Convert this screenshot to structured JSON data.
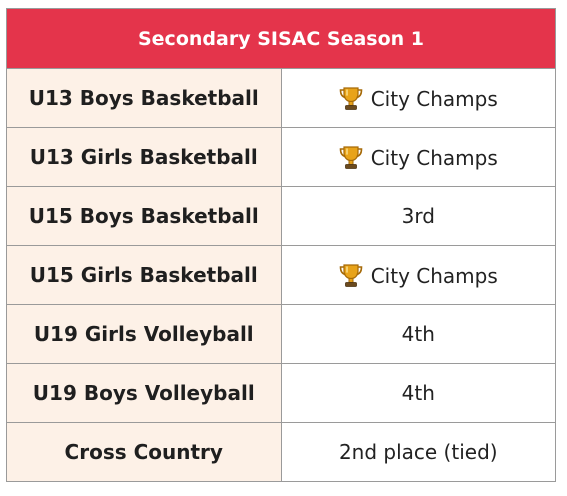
{
  "table": {
    "title": "Secondary SISAC Season 1",
    "colors": {
      "header_bg": "#e4344b",
      "sport_cell_bg": "#fdf1e7",
      "trophy": "#e8a31a"
    },
    "rows": [
      {
        "sport": "U13 Boys Basketball",
        "result": "City Champs",
        "icon": "trophy-icon"
      },
      {
        "sport": "U13 Girls Basketball",
        "result": "City Champs",
        "icon": "trophy-icon"
      },
      {
        "sport": "U15 Boys Basketball",
        "result": "3rd",
        "icon": ""
      },
      {
        "sport": "U15 Girls Basketball",
        "result": "City Champs",
        "icon": "trophy-icon"
      },
      {
        "sport": "U19 Girls Volleyball",
        "result": "4th",
        "icon": ""
      },
      {
        "sport": "U19 Boys Volleyball",
        "result": "4th",
        "icon": ""
      },
      {
        "sport": "Cross Country",
        "result": "2nd place (tied)",
        "icon": ""
      }
    ]
  }
}
